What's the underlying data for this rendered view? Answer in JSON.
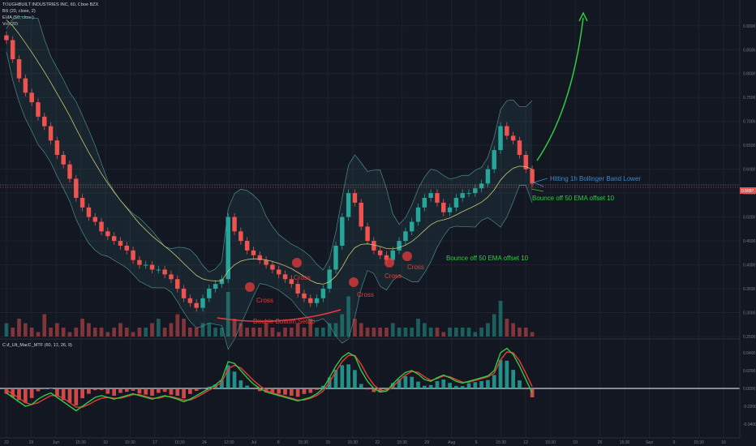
{
  "legend": {
    "symbol": "TOUGHBUILT INDUSTRIES INC, 60, Cboe BZX",
    "bb": "BB (20, close, 2)",
    "ema": "EMA (50, close)",
    "vol": "Vol (20)",
    "macd": "CM_Ult_MacD_MTF (60, 12, 26, 9)"
  },
  "colors": {
    "background": "#131722",
    "up_candle": "#26a69a",
    "down_candle": "#ef5350",
    "ema_line": "#c8c86e",
    "bb_band": "#4a8c8c",
    "annotation_red": "#e83b3b",
    "annotation_green": "#2ecc40",
    "annotation_blue": "#3d87c9",
    "macd_line": "#2ecc40",
    "signal_line": "#e83b3b",
    "zero_line": "#ffffff"
  },
  "annotations": {
    "cross1": "Cross",
    "cross2": "Cross",
    "cross3": "Cross",
    "cross4": "Cross",
    "cross5": "Cross",
    "double_bottom": "Double Bottom Setup",
    "bounce1": "Bounce off 50 EMA offset 10",
    "bounce2": "Bounce off 50 EMA offset 10",
    "hitting": "Hitting 1h Bollinger Band Lower"
  },
  "chart_data": [
    {
      "type": "candlestick",
      "title": "TOUGHBUILT INDUSTRIES INC, 60, Cboe BZX",
      "y_axis_ticks": [
        "0.9000",
        "0.8500",
        "0.8000",
        "0.7500",
        "0.7000",
        "0.6500",
        "0.6000",
        "0.5500",
        "0.5000",
        "0.4500",
        "0.4000",
        "0.3500",
        "0.3000",
        "0.2500"
      ],
      "ylim": [
        0.25,
        0.92
      ],
      "current_price_label": "0.5687",
      "x_axis_ticks": [
        "22",
        "29",
        "Jun",
        "15:30",
        "10",
        "15:30",
        "17",
        "15:30",
        "24",
        "12:30",
        "Jul",
        "8",
        "15:30",
        "15",
        "15:30",
        "22",
        "15:30",
        "29",
        "Aug",
        "5",
        "15:30",
        "12",
        "15:30",
        "19",
        "26",
        "15:30",
        "Sep",
        "9",
        "15:30",
        "16"
      ],
      "close_approx": [
        0.87,
        0.83,
        0.79,
        0.76,
        0.74,
        0.71,
        0.69,
        0.66,
        0.63,
        0.61,
        0.58,
        0.54,
        0.52,
        0.5,
        0.49,
        0.47,
        0.46,
        0.45,
        0.44,
        0.43,
        0.41,
        0.4,
        0.4,
        0.39,
        0.39,
        0.38,
        0.37,
        0.35,
        0.33,
        0.32,
        0.31,
        0.33,
        0.35,
        0.36,
        0.37,
        0.5,
        0.47,
        0.45,
        0.43,
        0.42,
        0.41,
        0.4,
        0.39,
        0.38,
        0.37,
        0.36,
        0.34,
        0.33,
        0.32,
        0.33,
        0.35,
        0.39,
        0.44,
        0.5,
        0.55,
        0.53,
        0.48,
        0.45,
        0.43,
        0.42,
        0.41,
        0.43,
        0.45,
        0.47,
        0.49,
        0.52,
        0.54,
        0.55,
        0.53,
        0.51,
        0.52,
        0.54,
        0.55,
        0.55,
        0.56,
        0.57,
        0.6,
        0.64,
        0.69,
        0.67,
        0.66,
        0.63,
        0.6,
        0.57
      ]
    },
    {
      "type": "bar",
      "title": "Vol (20)",
      "values": [
        0.3,
        0.2,
        0.4,
        0.3,
        0.2,
        0.1,
        0.5,
        0.2,
        0.3,
        0.2,
        0.1,
        0.2,
        0.4,
        0.3,
        0.2,
        0.2,
        0.1,
        0.2,
        0.3,
        0.2,
        0.1,
        0.2,
        0.2,
        0.3,
        0.4,
        0.2,
        0.3,
        0.5,
        0.4,
        0.2,
        0.2,
        0.3,
        0.3,
        0.2,
        0.2,
        1.0,
        0.4,
        0.3,
        0.2,
        0.2,
        0.2,
        0.3,
        0.2,
        0.1,
        0.2,
        0.2,
        0.3,
        0.2,
        0.4,
        0.2,
        0.2,
        0.3,
        0.3,
        0.5,
        0.9,
        0.4,
        0.3,
        0.2,
        0.2,
        0.2,
        0.2,
        0.3,
        0.2,
        0.2,
        0.2,
        0.4,
        0.3,
        0.2,
        0.2,
        0.1,
        0.2,
        0.2,
        0.2,
        0.2,
        0.1,
        0.2,
        0.3,
        0.5,
        0.8,
        0.4,
        0.3,
        0.2,
        0.2,
        0.1
      ]
    },
    {
      "type": "line",
      "title": "CM_Ult_MacD_MTF (60, 12, 26, 9)",
      "y_axis_ticks": [
        "0.0400",
        "0.0200",
        "0.0000",
        "-0.0200",
        "-0.0400"
      ],
      "ylim": [
        -0.05,
        0.05
      ],
      "series": [
        {
          "values": [
            -0.005,
            -0.01,
            -0.015,
            -0.02,
            -0.018,
            -0.012,
            -0.008,
            -0.005,
            -0.01,
            -0.015,
            -0.02,
            -0.025,
            -0.02,
            -0.015,
            -0.01,
            -0.008,
            -0.01,
            -0.012,
            -0.01,
            -0.008,
            -0.006,
            -0.008,
            -0.01,
            -0.012,
            -0.01,
            -0.008,
            -0.01,
            -0.012,
            -0.015,
            -0.012,
            -0.008,
            -0.004,
            0.0,
            0.004,
            0.01,
            0.03,
            0.028,
            0.02,
            0.012,
            0.005,
            0.0,
            -0.004,
            -0.006,
            -0.008,
            -0.01,
            -0.012,
            -0.014,
            -0.012,
            -0.01,
            -0.006,
            0.0,
            0.012,
            0.025,
            0.035,
            0.04,
            0.036,
            0.02,
            0.008,
            0.0,
            -0.004,
            -0.003,
            0.005,
            0.012,
            0.018,
            0.02,
            0.016,
            0.01,
            0.008,
            0.012,
            0.015,
            0.012,
            0.008,
            0.006,
            0.008,
            0.01,
            0.012,
            0.014,
            0.02,
            0.04,
            0.045,
            0.038,
            0.025,
            0.01,
            -0.005
          ]
        },
        {
          "values": [
            -0.002,
            -0.006,
            -0.011,
            -0.016,
            -0.018,
            -0.016,
            -0.012,
            -0.008,
            -0.008,
            -0.011,
            -0.016,
            -0.021,
            -0.021,
            -0.018,
            -0.014,
            -0.011,
            -0.01,
            -0.011,
            -0.011,
            -0.009,
            -0.007,
            -0.007,
            -0.009,
            -0.011,
            -0.011,
            -0.009,
            -0.009,
            -0.011,
            -0.013,
            -0.013,
            -0.01,
            -0.006,
            -0.002,
            0.002,
            0.007,
            0.022,
            0.026,
            0.023,
            0.016,
            0.009,
            0.003,
            -0.002,
            -0.005,
            -0.007,
            -0.009,
            -0.011,
            -0.013,
            -0.013,
            -0.011,
            -0.008,
            -0.003,
            0.007,
            0.019,
            0.03,
            0.037,
            0.037,
            0.027,
            0.014,
            0.004,
            -0.002,
            -0.003,
            0.002,
            0.009,
            0.015,
            0.019,
            0.018,
            0.013,
            0.009,
            0.011,
            0.014,
            0.013,
            0.01,
            0.007,
            0.007,
            0.009,
            0.011,
            0.013,
            0.017,
            0.032,
            0.041,
            0.04,
            0.031,
            0.017,
            0.002
          ]
        }
      ]
    }
  ]
}
